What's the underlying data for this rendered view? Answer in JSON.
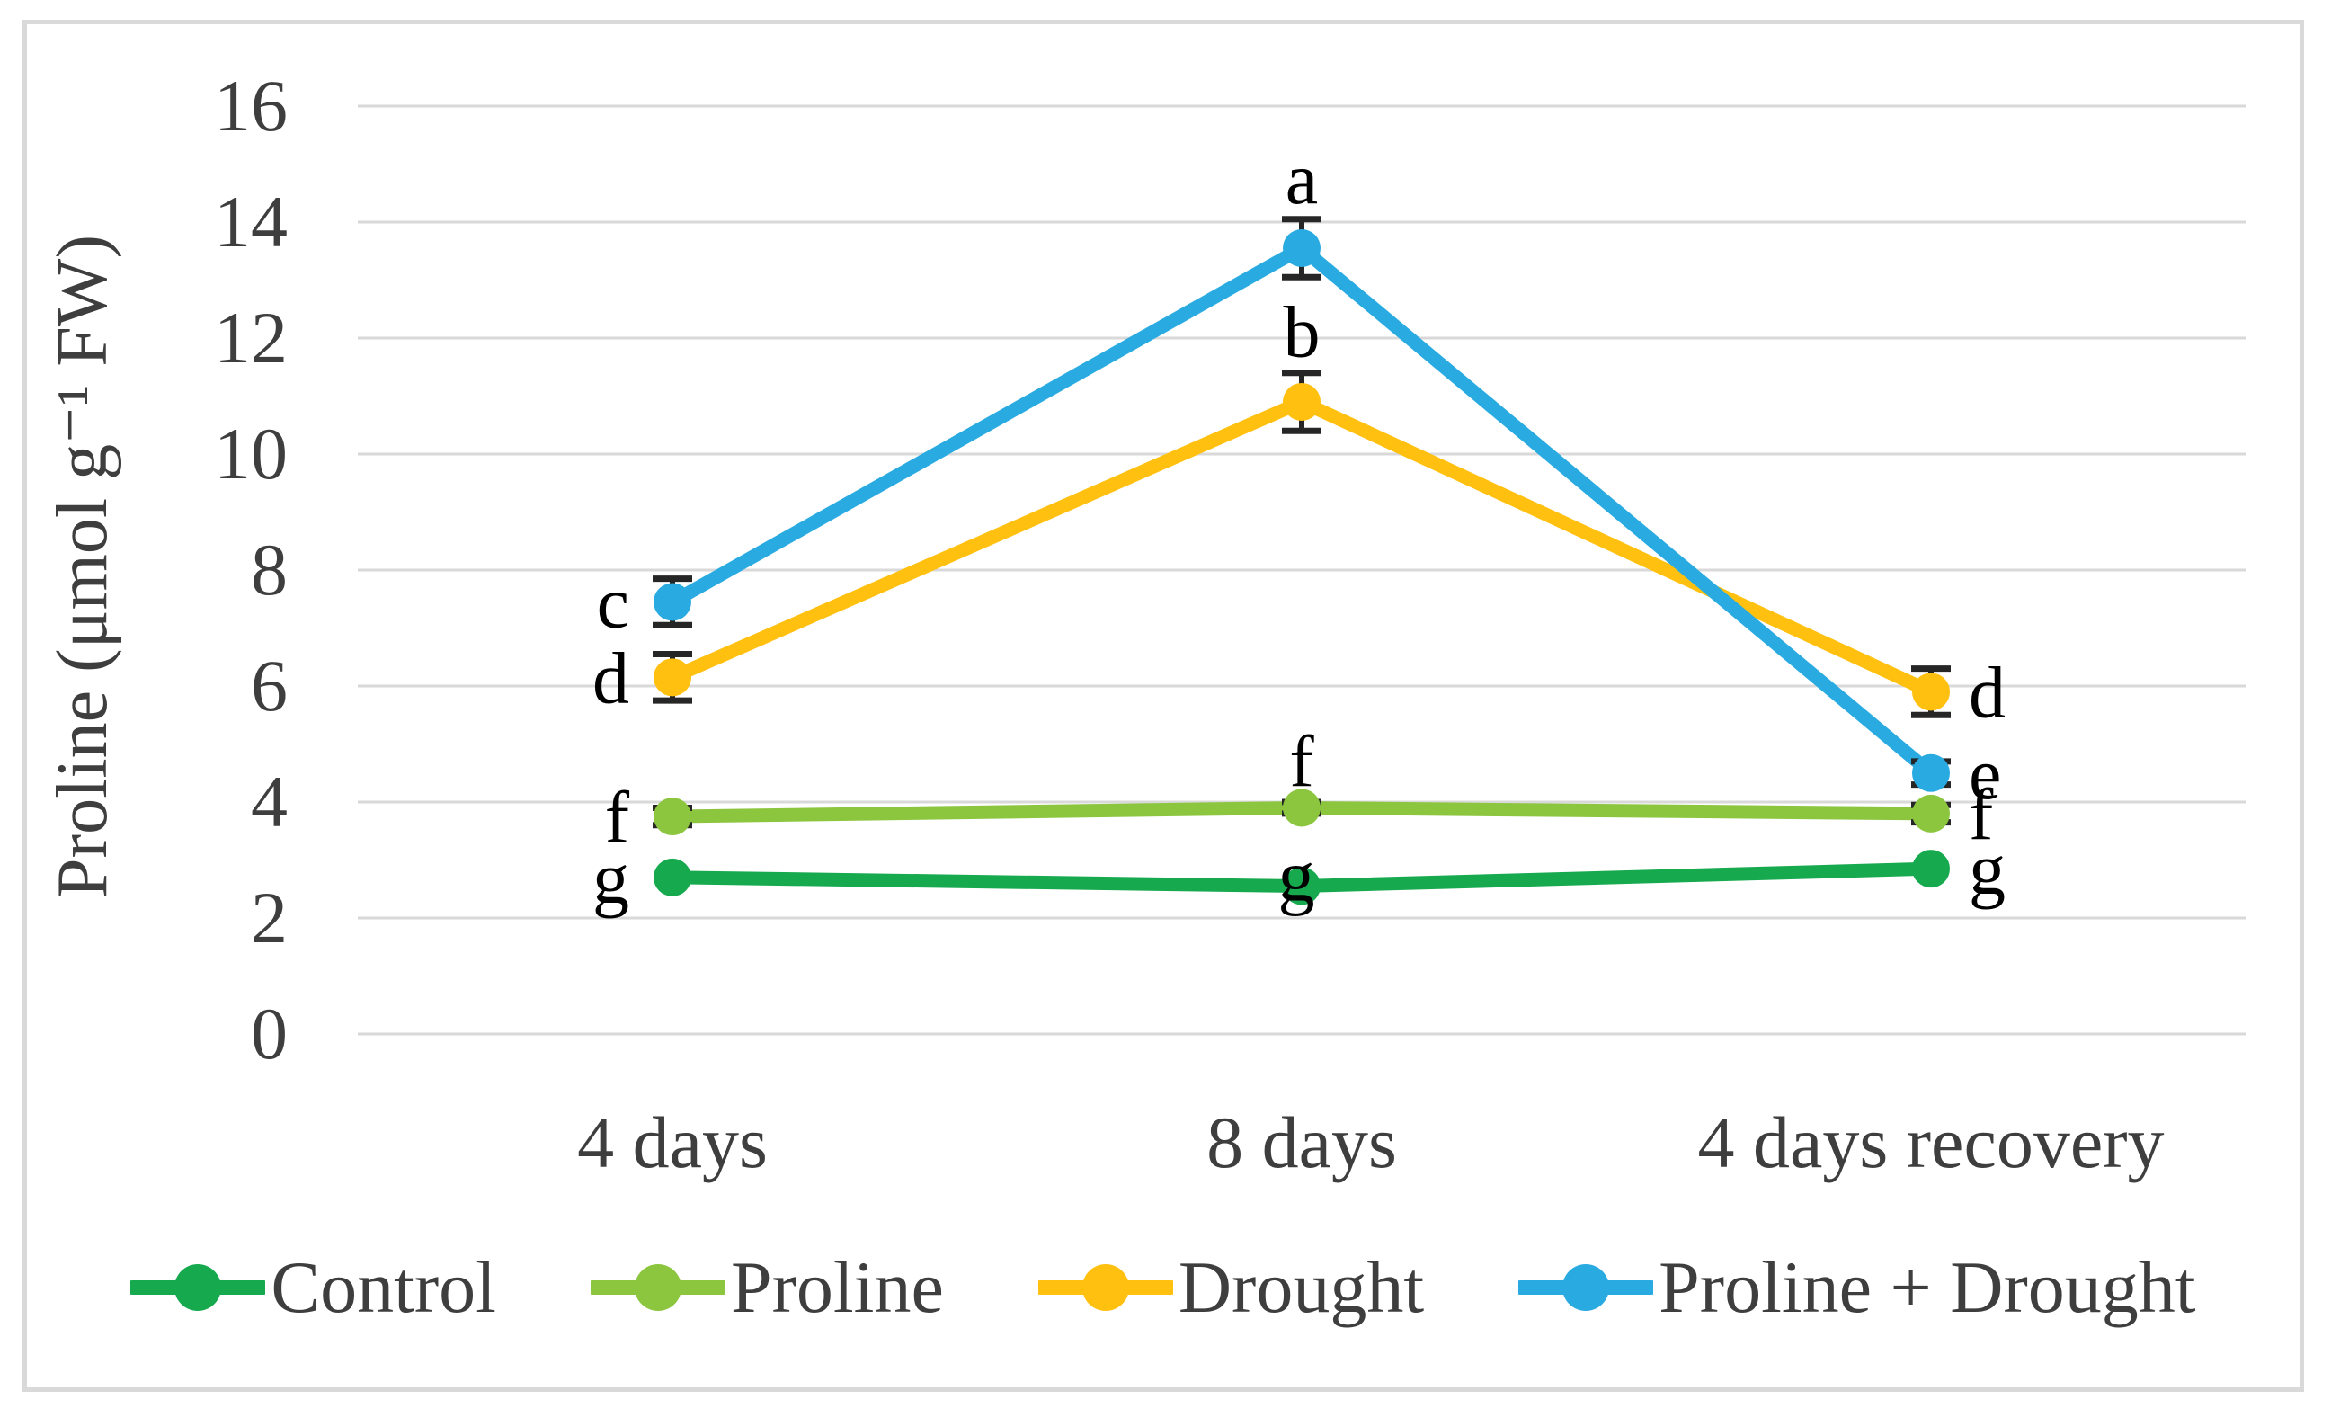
{
  "figure": {
    "background": "#ffffff",
    "frame_border_color": "#d9d9d9"
  },
  "chart_data": {
    "type": "line",
    "title": "",
    "xlabel": "",
    "ylabel": "Proline (μmol g⁻¹ FW)",
    "categories": [
      "4 days",
      "8 days",
      "4 days recovery"
    ],
    "ylim": [
      0,
      16
    ],
    "yticks": [
      0,
      2,
      4,
      6,
      8,
      10,
      12,
      14,
      16
    ],
    "grid": "horizontal",
    "gridline_color": "#d9d9d9",
    "axis_text_color": "#3e3e3e",
    "annotation_color": "#000000",
    "error_bar_color": "#262626",
    "legend_position": "bottom",
    "series": [
      {
        "name": "Control",
        "color": "#16A94E",
        "values": [
          2.7,
          2.55,
          2.85
        ],
        "errors": [
          0,
          0,
          0
        ],
        "letters": [
          "g",
          "g",
          "g"
        ],
        "letter_placement": [
          "left",
          "over",
          "right"
        ]
      },
      {
        "name": "Proline",
        "color": "#8CC63F",
        "values": [
          3.75,
          3.9,
          3.8
        ],
        "errors": [
          0.15,
          0.1,
          0.15
        ],
        "letters": [
          "f",
          "f",
          "f"
        ],
        "letter_placement": [
          "left",
          "above",
          "right"
        ]
      },
      {
        "name": "Drought",
        "color": "#FFC010",
        "values": [
          6.15,
          10.9,
          5.9
        ],
        "errors": [
          0.4,
          0.5,
          0.4
        ],
        "letters": [
          "d",
          "b",
          "d"
        ],
        "letter_placement": [
          "left",
          "above",
          "right"
        ]
      },
      {
        "name": "Proline + Drought",
        "color": "#29ABE2",
        "values": [
          7.45,
          13.55,
          4.5
        ],
        "errors": [
          0.4,
          0.5,
          0.2
        ],
        "letters": [
          "c",
          "a",
          "e"
        ],
        "letter_placement": [
          "left",
          "above",
          "right"
        ]
      }
    ]
  }
}
